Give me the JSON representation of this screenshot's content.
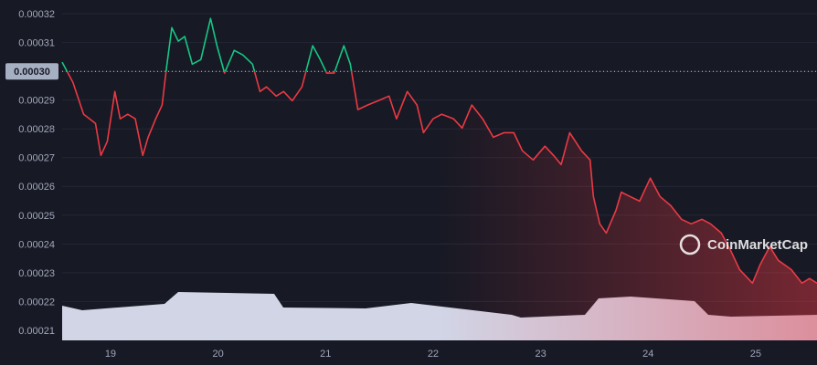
{
  "chart_data": {
    "type": "line",
    "x": [
      18.55,
      18.65,
      18.75,
      18.86,
      18.91,
      18.97,
      19.04,
      19.09,
      19.16,
      19.23,
      19.3,
      19.35,
      19.42,
      19.48,
      19.52,
      19.57,
      19.63,
      19.69,
      19.76,
      19.84,
      19.93,
      19.99,
      20.06,
      20.15,
      20.23,
      20.32,
      20.39,
      20.45,
      20.54,
      20.61,
      20.69,
      20.78,
      20.88,
      20.95,
      21.01,
      21.08,
      21.17,
      21.23,
      21.3,
      21.39,
      21.49,
      21.59,
      21.66,
      21.76,
      21.85,
      21.91,
      22.0,
      22.08,
      22.19,
      22.27,
      22.36,
      22.46,
      22.56,
      22.66,
      22.75,
      22.83,
      22.93,
      23.04,
      23.12,
      23.19,
      23.27,
      23.38,
      23.46,
      23.49,
      23.55,
      23.61,
      23.7,
      23.75,
      23.83,
      23.92,
      24.02,
      24.11,
      24.21,
      24.31,
      24.4,
      24.5,
      24.58,
      24.68,
      24.77,
      24.85,
      24.97,
      25.04,
      25.13,
      25.21,
      25.33,
      25.43,
      25.5,
      25.57
    ],
    "values": [
      0.0003032,
      0.0002962,
      0.0002851,
      0.0002819,
      0.0002708,
      0.0002756,
      0.000293,
      0.0002835,
      0.0002851,
      0.0002835,
      0.0002708,
      0.0002771,
      0.0002835,
      0.0002883,
      0.000301,
      0.0003152,
      0.0003105,
      0.0003121,
      0.0003025,
      0.0003041,
      0.0003184,
      0.0003089,
      0.0002994,
      0.0003073,
      0.0003057,
      0.0003025,
      0.000293,
      0.0002946,
      0.0002914,
      0.000293,
      0.0002898,
      0.0002946,
      0.0003089,
      0.0003041,
      0.0002994,
      0.0002994,
      0.0003089,
      0.0003025,
      0.0002867,
      0.0002883,
      0.0002898,
      0.0002914,
      0.0002835,
      0.000293,
      0.0002883,
      0.0002787,
      0.0002835,
      0.0002851,
      0.0002835,
      0.0002803,
      0.0002883,
      0.0002835,
      0.0002771,
      0.0002787,
      0.0002787,
      0.0002724,
      0.0002692,
      0.000274,
      0.0002708,
      0.0002676,
      0.0002787,
      0.0002724,
      0.0002692,
      0.0002565,
      0.000247,
      0.0002438,
      0.0002517,
      0.000258,
      0.0002565,
      0.0002549,
      0.0002629,
      0.0002565,
      0.0002533,
      0.0002486,
      0.000247,
      0.0002486,
      0.000247,
      0.0002438,
      0.0002375,
      0.0002311,
      0.0002264,
      0.0002327,
      0.0002391,
      0.0002343,
      0.0002311,
      0.0002264,
      0.000228,
      0.0002264
    ],
    "baseline": 0.0003,
    "colors": {
      "up": "#16c784",
      "down": "#ea3943"
    },
    "xlim": [
      18.55,
      25.57
    ],
    "xticks": [
      19,
      20,
      21,
      22,
      23,
      24,
      25
    ],
    "ylim": [
      0.0002065,
      0.0003248
    ],
    "yticks": [
      0.00021,
      0.00022,
      0.00023,
      0.00024,
      0.00025,
      0.00026,
      0.00027,
      0.00028,
      0.00029,
      {
        "value": 0.0003,
        "label": "0.00030"
      },
      0.00031,
      0.00032
    ],
    "grid": true,
    "watermark": "CoinMarketCap"
  }
}
